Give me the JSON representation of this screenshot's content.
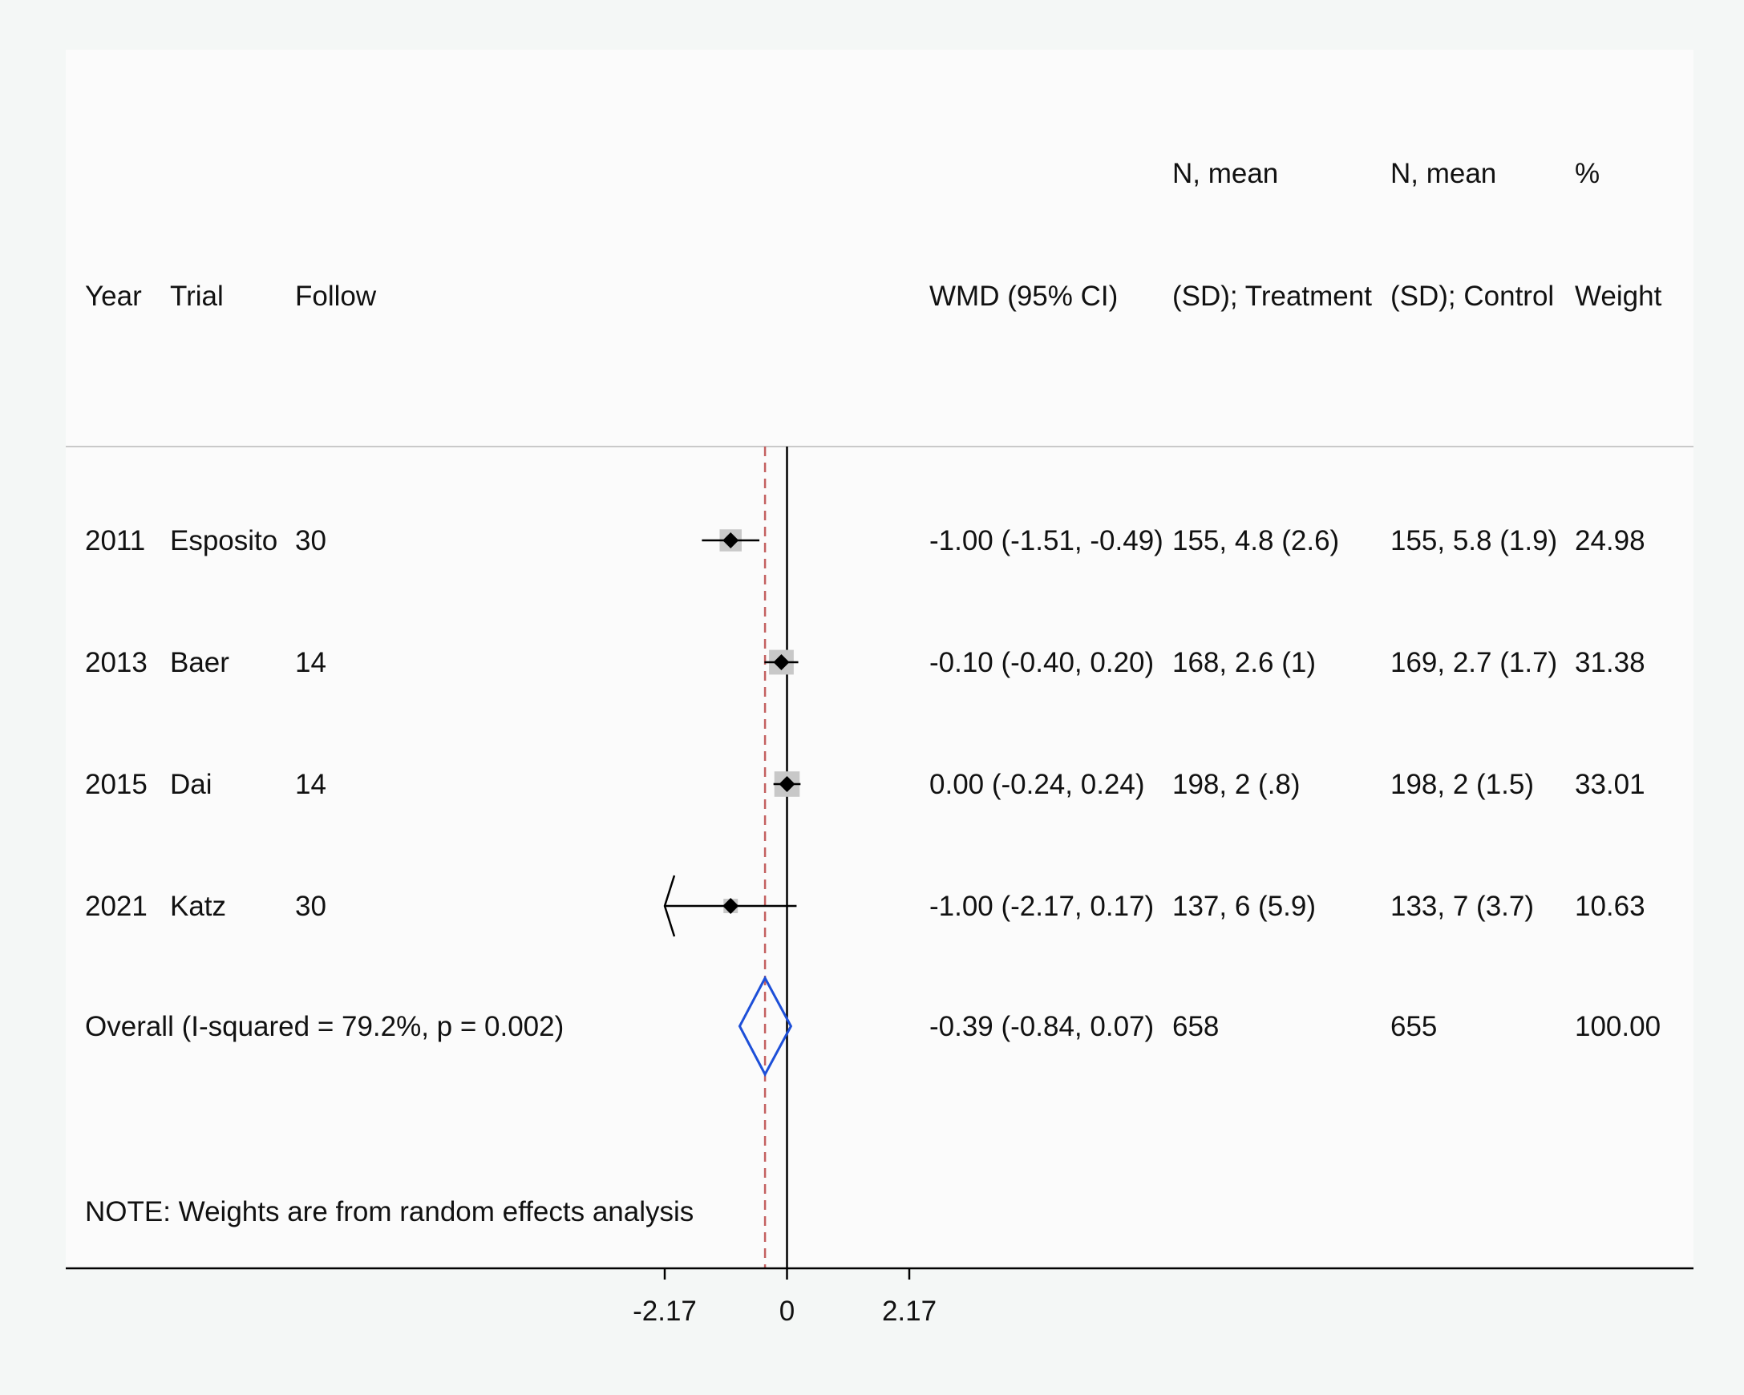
{
  "header": {
    "col_year": "Year",
    "col_trial": "Trial",
    "col_follow": "Follow",
    "col_wmd": "WMD (95% CI)",
    "col_treat_line1": "N, mean",
    "col_treat_line2": "(SD); Treatment",
    "col_ctrl_line1": "N, mean",
    "col_ctrl_line2": "(SD); Control",
    "col_weight_line1": "%",
    "col_weight_line2": "Weight"
  },
  "note": "NOTE: Weights are from random effects analysis",
  "colors": {
    "background": "#f4f7f6",
    "panel": "#fbfbfb",
    "marker": "#000000",
    "weight_box": "#c8c8c8",
    "overall_diamond": "#1d4fd8",
    "overall_line": "#c46060"
  },
  "chart_data": {
    "type": "forest",
    "effect_measure": "WMD",
    "xlim": [
      -2.17,
      2.17
    ],
    "xticks": [
      "-2.17",
      "0",
      "2.17"
    ],
    "null_line": 0,
    "overall_line": -0.39,
    "studies": [
      {
        "year": "2011",
        "trial": "Esposito",
        "follow": "30",
        "wmd": -1.0,
        "lo": -1.51,
        "hi": -0.49,
        "ci_text": "-1.00 (-1.51, -0.49)",
        "treatment": "155, 4.8 (2.6)",
        "control": "155, 5.8 (1.9)",
        "weight_text": "24.98",
        "weight": 24.98
      },
      {
        "year": "2013",
        "trial": "Baer",
        "follow": "14",
        "wmd": -0.1,
        "lo": -0.4,
        "hi": 0.2,
        "ci_text": "-0.10 (-0.40, 0.20)",
        "treatment": "168, 2.6 (1)",
        "control": "169, 2.7 (1.7)",
        "weight_text": "31.38",
        "weight": 31.38
      },
      {
        "year": "2015",
        "trial": "Dai",
        "follow": "14",
        "wmd": 0.0,
        "lo": -0.24,
        "hi": 0.24,
        "ci_text": "0.00 (-0.24, 0.24)",
        "treatment": "198, 2 (.8)",
        "control": "198, 2 (1.5)",
        "weight_text": "33.01",
        "weight": 33.01
      },
      {
        "year": "2021",
        "trial": "Katz",
        "follow": "30",
        "wmd": -1.0,
        "lo": -2.17,
        "hi": 0.17,
        "ci_text": "-1.00 (-2.17, 0.17)",
        "treatment": "137, 6 (5.9)",
        "control": "133, 7 (3.7)",
        "weight_text": "10.63",
        "weight": 10.63,
        "lo_clipped": true
      }
    ],
    "overall": {
      "label": "Overall  (I-squared = 79.2%, p = 0.002)",
      "wmd": -0.39,
      "lo": -0.84,
      "hi": 0.07,
      "ci_text": "-0.39 (-0.84, 0.07)",
      "treatment": "658",
      "control": "655",
      "weight_text": "100.00"
    }
  }
}
